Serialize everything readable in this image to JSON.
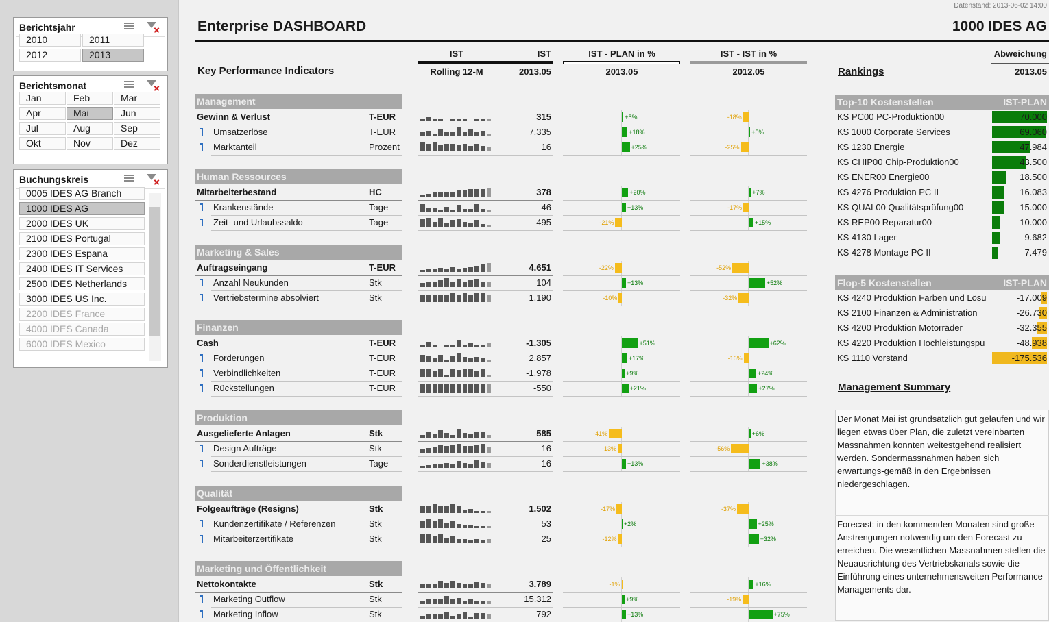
{
  "slicers": [
    {
      "title": "Berichtsjahr",
      "items": [
        "2010",
        "2011",
        "2012",
        "2013"
      ],
      "selected": [
        3
      ],
      "disabled": []
    },
    {
      "title": "Berichtsmonat",
      "items": [
        "Jan",
        "Feb",
        "Mar",
        "Apr",
        "Mai",
        "Jun",
        "Jul",
        "Aug",
        "Sep",
        "Okt",
        "Nov",
        "Dez"
      ],
      "selected": [
        4
      ],
      "disabled": []
    },
    {
      "title": "Buchungskreis",
      "items": [
        "0005 IDES AG Branch",
        "1000 IDES AG",
        "2000 IDES UK",
        "2100 IDES Portugal",
        "2300 IDES Espana",
        "2400 IDES IT Services",
        "2500 IDES Netherlands",
        "3000 IDES US Inc.",
        "2200 IDES France",
        "4000 IDES Canada",
        "6000 IDES Mexico"
      ],
      "selected": [
        1
      ],
      "disabled": [
        8,
        9,
        10
      ]
    }
  ],
  "header": {
    "timestamp": "Datenstand: 2013-06-02 14:00",
    "title": "Enterprise DASHBOARD",
    "company": "1000 IDES AG"
  },
  "columns": {
    "kpi_title": "Key Performance Indicators",
    "ist_a": "IST",
    "ist_b": "IST",
    "rolling": "Rolling 12-M",
    "period": "2013.05",
    "plan_head": "IST - PLAN in %",
    "plan_period": "2013.05",
    "prev_head": "IST - IST in %",
    "prev_period": "2012.05"
  },
  "sections": [
    {
      "name": "Management",
      "rows": [
        {
          "label": "Gewinn & Verlust",
          "unit": "T-EUR",
          "level": 0,
          "spark": [
            3,
            4,
            2,
            3,
            1,
            2,
            3,
            2,
            1,
            3,
            2,
            2
          ],
          "value": "315",
          "plan": {
            "value": 5,
            "label": "+5%"
          },
          "prev": {
            "value": -18,
            "label": "-18%"
          }
        },
        {
          "label": "Umsatzerlöse",
          "unit": "T-EUR",
          "level": 1,
          "spark": [
            4,
            6,
            3,
            8,
            4,
            5,
            9,
            4,
            8,
            5,
            6,
            3
          ],
          "value": "7.335",
          "plan": {
            "value": 18,
            "label": "+18%"
          },
          "prev": {
            "value": 5,
            "label": "+5%"
          }
        },
        {
          "label": "Marktanteil",
          "unit": "Prozent",
          "level": 1,
          "spark": [
            9,
            8,
            9,
            7,
            8,
            8,
            7,
            8,
            6,
            8,
            6,
            4
          ],
          "value": "16",
          "plan": {
            "value": 25,
            "label": "+25%"
          },
          "prev": {
            "value": -25,
            "label": "-25%"
          }
        }
      ]
    },
    {
      "name": "Human Ressources",
      "rows": [
        {
          "label": "Mitarbeiterbestand",
          "unit": "HC",
          "level": 0,
          "spark": [
            2,
            3,
            4,
            4,
            4,
            5,
            7,
            7,
            8,
            8,
            8,
            9
          ],
          "value": "378",
          "plan": {
            "value": 20,
            "label": "+20%"
          },
          "prev": {
            "value": 7,
            "label": "+7%"
          }
        },
        {
          "label": "Krankenstände",
          "unit": "Tage",
          "level": 1,
          "spark": [
            8,
            4,
            4,
            2,
            5,
            2,
            7,
            3,
            3,
            8,
            3,
            2
          ],
          "value": "46",
          "plan": {
            "value": 13,
            "label": "+13%"
          },
          "prev": {
            "value": -17,
            "label": "-17%"
          }
        },
        {
          "label": "Zeit- und Urlaubssaldo",
          "unit": "Tage",
          "level": 1,
          "spark": [
            8,
            9,
            5,
            9,
            4,
            7,
            8,
            5,
            4,
            7,
            3,
            2
          ],
          "value": "495",
          "plan": {
            "value": -21,
            "label": "-21%"
          },
          "prev": {
            "value": 15,
            "label": "+15%"
          }
        }
      ]
    },
    {
      "name": "Marketing & Sales",
      "rows": [
        {
          "label": "Auftragseingang",
          "unit": "T-EUR",
          "level": 0,
          "spark": [
            2,
            3,
            3,
            4,
            3,
            5,
            3,
            4,
            5,
            6,
            8,
            9
          ],
          "value": "4.651",
          "plan": {
            "value": -22,
            "label": "-22%"
          },
          "prev": {
            "value": -52,
            "label": "-52%"
          }
        },
        {
          "label": "Anzahl Neukunden",
          "unit": "Stk",
          "level": 1,
          "spark": [
            4,
            6,
            5,
            7,
            9,
            5,
            8,
            6,
            7,
            8,
            5,
            5
          ],
          "value": "104",
          "plan": {
            "value": 13,
            "label": "+13%"
          },
          "prev": {
            "value": 52,
            "label": "+52%"
          }
        },
        {
          "label": "Vertriebstermine absolviert",
          "unit": "Stk",
          "level": 1,
          "spark": [
            7,
            7,
            8,
            8,
            7,
            9,
            8,
            9,
            8,
            9,
            9,
            8
          ],
          "value": "1.190",
          "plan": {
            "value": -10,
            "label": "-10%"
          },
          "prev": {
            "value": -32,
            "label": "-32%"
          }
        }
      ]
    },
    {
      "name": "Finanzen",
      "rows": [
        {
          "label": "Cash",
          "unit": "T-EUR",
          "level": 0,
          "spark": [
            3,
            6,
            2,
            1,
            2,
            2,
            8,
            3,
            4,
            3,
            2,
            4
          ],
          "value": "-1.305",
          "plan": {
            "value": 51,
            "label": "+51%"
          },
          "prev": {
            "value": 62,
            "label": "+62%"
          }
        },
        {
          "label": "Forderungen",
          "unit": "T-EUR",
          "level": 1,
          "spark": [
            8,
            7,
            4,
            8,
            3,
            7,
            9,
            6,
            5,
            6,
            4,
            3
          ],
          "value": "2.857",
          "plan": {
            "value": 17,
            "label": "+17%"
          },
          "prev": {
            "value": -16,
            "label": "-16%"
          }
        },
        {
          "label": "Verbindlichkeiten",
          "unit": "T-EUR",
          "level": 1,
          "spark": [
            9,
            9,
            7,
            9,
            2,
            9,
            8,
            9,
            9,
            7,
            9,
            3
          ],
          "value": "-1.978",
          "plan": {
            "value": 9,
            "label": "+9%"
          },
          "prev": {
            "value": 24,
            "label": "+24%"
          }
        },
        {
          "label": "Rückstellungen",
          "unit": "T-EUR",
          "level": 1,
          "spark": [
            9,
            9,
            9,
            9,
            9,
            9,
            9,
            9,
            9,
            9,
            9,
            9
          ],
          "value": "-550",
          "plan": {
            "value": 21,
            "label": "+21%"
          },
          "prev": {
            "value": 27,
            "label": "+27%"
          }
        }
      ]
    },
    {
      "name": "Produktion",
      "rows": [
        {
          "label": "Ausgelieferte Anlagen",
          "unit": "Stk",
          "level": 0,
          "spark": [
            3,
            6,
            4,
            8,
            5,
            3,
            9,
            5,
            4,
            6,
            6,
            3
          ],
          "value": "585",
          "plan": {
            "value": -41,
            "label": "-41%"
          },
          "prev": {
            "value": 6,
            "label": "+6%"
          }
        },
        {
          "label": "Design Aufträge",
          "unit": "Stk",
          "level": 1,
          "spark": [
            4,
            5,
            6,
            8,
            7,
            8,
            9,
            7,
            7,
            8,
            9,
            6
          ],
          "value": "16",
          "plan": {
            "value": -13,
            "label": "-13%"
          },
          "prev": {
            "value": -56,
            "label": "-56%"
          }
        },
        {
          "label": "Sonderdienstleistungen",
          "unit": "Tage",
          "level": 1,
          "spark": [
            2,
            3,
            4,
            4,
            5,
            4,
            7,
            5,
            4,
            8,
            6,
            5
          ],
          "value": "16",
          "plan": {
            "value": 13,
            "label": "+13%"
          },
          "prev": {
            "value": 38,
            "label": "+38%"
          }
        }
      ]
    },
    {
      "name": "Qualität",
      "rows": [
        {
          "label": "Folgeaufträge (Resigns)",
          "unit": "Stk",
          "level": 0,
          "spark": [
            8,
            8,
            9,
            7,
            8,
            9,
            7,
            3,
            4,
            2,
            2,
            2
          ],
          "value": "1.502",
          "plan": {
            "value": -17,
            "label": "-17%"
          },
          "prev": {
            "value": -37,
            "label": "-37%"
          }
        },
        {
          "label": "Kundenzertifikate / Referenzen",
          "unit": "Stk",
          "level": 1,
          "spark": [
            8,
            9,
            7,
            9,
            6,
            8,
            4,
            3,
            3,
            2,
            2,
            2
          ],
          "value": "53",
          "plan": {
            "value": 2,
            "label": "+2%"
          },
          "prev": {
            "value": 25,
            "label": "+25%"
          }
        },
        {
          "label": "Mitarbeiterzertifikate",
          "unit": "Stk",
          "level": 1,
          "spark": [
            9,
            9,
            8,
            9,
            6,
            8,
            4,
            4,
            3,
            4,
            3,
            4
          ],
          "value": "25",
          "plan": {
            "value": -12,
            "label": "-12%"
          },
          "prev": {
            "value": 32,
            "label": "+32%"
          }
        }
      ]
    },
    {
      "name": "Marketing und Öffentlichkeit",
      "rows": [
        {
          "label": "Nettokontakte",
          "unit": "Stk",
          "level": 0,
          "spark": [
            4,
            5,
            5,
            8,
            6,
            8,
            6,
            5,
            4,
            7,
            6,
            4
          ],
          "value": "3.789",
          "plan": {
            "value": -1,
            "label": "-1%"
          },
          "prev": {
            "value": 16,
            "label": "+16%"
          }
        },
        {
          "label": "Marketing Outflow",
          "unit": "Stk",
          "level": 1,
          "spark": [
            3,
            4,
            5,
            4,
            8,
            5,
            6,
            3,
            4,
            3,
            3,
            2
          ],
          "value": "15.312",
          "plan": {
            "value": 9,
            "label": "+9%"
          },
          "prev": {
            "value": -19,
            "label": "-19%"
          }
        },
        {
          "label": "Marketing Inflow",
          "unit": "Stk",
          "level": 1,
          "spark": [
            3,
            4,
            4,
            5,
            7,
            3,
            5,
            7,
            2,
            6,
            6,
            4
          ],
          "value": "792",
          "plan": {
            "value": 13,
            "label": "+13%"
          },
          "prev": {
            "value": 75,
            "label": "+75%"
          }
        }
      ]
    }
  ],
  "rankings": {
    "title": "Rankings",
    "head": "Abweichung",
    "period": "2013.05",
    "lists": [
      {
        "title": "Top-10 Kostenstellen",
        "column": "IST-PLAN",
        "color": "#0a7d0a",
        "items": [
          {
            "label": "KS PC00 PC-Produktion00",
            "value": 70000,
            "value_label": "70.000"
          },
          {
            "label": "KS 1000 Corporate Services",
            "value": 69060,
            "value_label": "69.060"
          },
          {
            "label": "KS 1230 Energie",
            "value": 47984,
            "value_label": "47.984"
          },
          {
            "label": "KS CHIP00 Chip-Produktion00",
            "value": 43500,
            "value_label": "43.500"
          },
          {
            "label": "KS ENER00 Energie00",
            "value": 18500,
            "value_label": "18.500"
          },
          {
            "label": "KS 4276 Produktion PC II",
            "value": 16083,
            "value_label": "16.083"
          },
          {
            "label": "KS QUAL00 Qualitätsprüfung00",
            "value": 15000,
            "value_label": "15.000"
          },
          {
            "label": "KS REP00 Reparatur00",
            "value": 10000,
            "value_label": "10.000"
          },
          {
            "label": "KS 4130 Lager",
            "value": 9682,
            "value_label": "9.682"
          },
          {
            "label": "KS 4278 Montage PC II",
            "value": 7479,
            "value_label": "7.479"
          }
        ]
      },
      {
        "title": "Flop-5 Kostenstellen",
        "column": "IST-PLAN",
        "color": "#f0b81e",
        "items": [
          {
            "label": "KS 4240 Produktion Farben und Lösu",
            "value": -17009,
            "value_label": "-17.009"
          },
          {
            "label": "KS 2100 Finanzen & Administration",
            "value": -26730,
            "value_label": "-26.730"
          },
          {
            "label": "KS 4200 Produktion Motorräder",
            "value": -32355,
            "value_label": "-32.355"
          },
          {
            "label": "KS 4220 Produktion Hochleistungspu",
            "value": -48938,
            "value_label": "-48.938"
          },
          {
            "label": "KS 1110 Vorstand",
            "value": -175536,
            "value_label": "-175.536"
          }
        ]
      }
    ]
  },
  "summary": {
    "title": "Management Summary",
    "paragraphs": [
      "Der Monat Mai ist grundsätzlich gut gelaufen und wir liegen etwas über Plan, die zuletzt vereinbarten Massnahmen konnten weitestgehend realisiert werden. Sondermassnahmen haben sich erwartungs-gemäß in den Ergebnissen niedergeschlagen.",
      "Forecast: in den kommenden Monaten sind große Anstrengungen notwendig um den Forecast zu erreichen. Die wesentlichen Massnahmen stellen die Neuausrichtung des Vertriebskanals sowie die Einführung eines unternehmensweiten Performance Managements dar."
    ]
  }
}
